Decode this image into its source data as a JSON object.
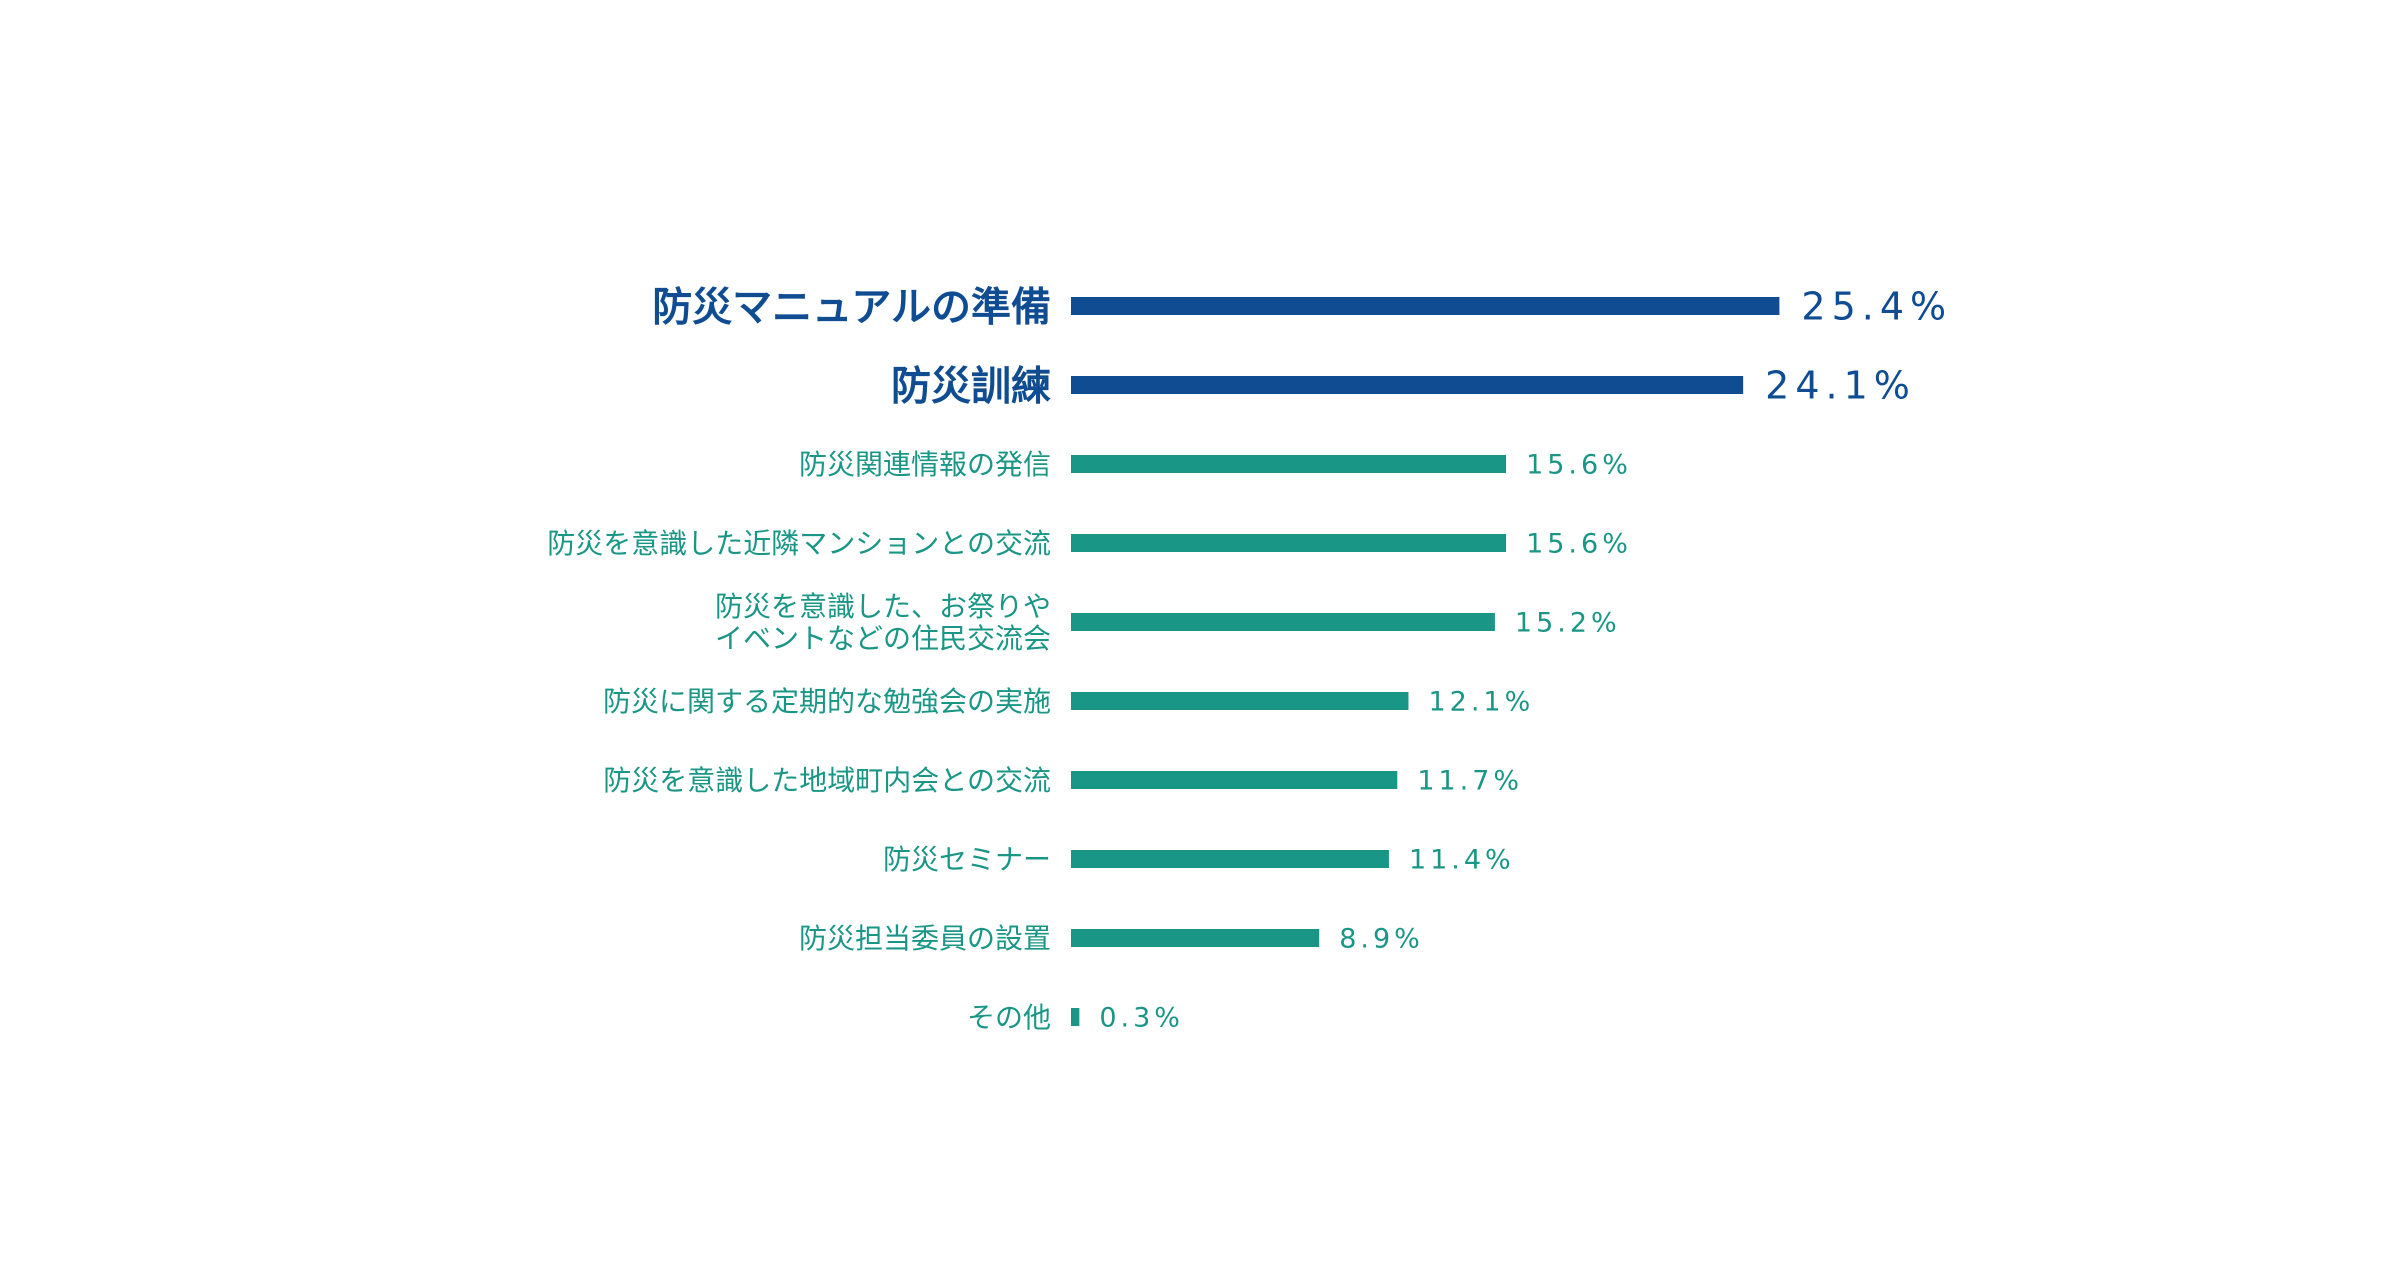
{
  "chart_data": {
    "type": "bar",
    "orientation": "horizontal",
    "unit": "%",
    "xlim": [
      0,
      30
    ],
    "grid": false,
    "legend": "none",
    "categories": [
      "防災マニュアルの準備",
      "防災訓練",
      "防災関連情報の発信",
      "防災を意識した近隣マンションとの交流",
      "防災を意識した、お祭りや\nイベントなどの住民交流会",
      "防災に関する定期的な勉強会の実施",
      "防災を意識した地域町内会との交流",
      "防災セミナー",
      "防災担当委員の設置",
      "その他"
    ],
    "values": [
      25.4,
      24.1,
      15.6,
      15.6,
      15.2,
      12.1,
      11.7,
      11.4,
      8.9,
      0.3
    ],
    "value_labels": [
      "25.4%",
      "24.1%",
      "15.6%",
      "15.6%",
      "15.2%",
      "12.1%",
      "11.7%",
      "11.4%",
      "8.9%",
      "0.3%"
    ],
    "highlighted": [
      true,
      true,
      false,
      false,
      false,
      false,
      false,
      false,
      false,
      false
    ],
    "colors": {
      "highlight": "#0f4c92",
      "normal": "#1a9686"
    }
  }
}
